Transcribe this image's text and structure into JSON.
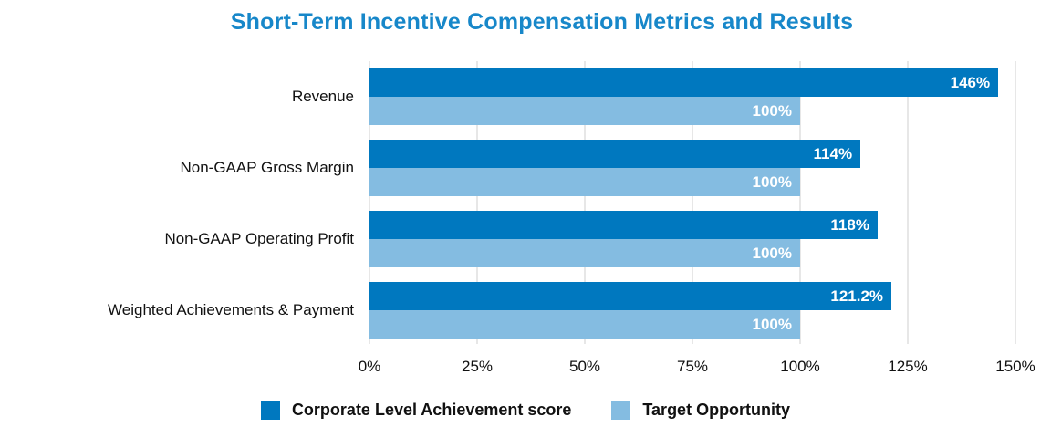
{
  "title": "Short-Term Incentive Compensation Metrics and Results",
  "colors": {
    "title_text": "#1787C9",
    "achievement_bar": "#0078BF",
    "target_bar": "#84BCE1",
    "gridline": "#E7E7E7",
    "axis_text": "#111111",
    "bar_value_text": "#FFFFFF",
    "background": "#FFFFFF"
  },
  "chart_data": {
    "type": "bar",
    "orientation": "horizontal",
    "title": "Short-Term Incentive Compensation Metrics and Results",
    "categories": [
      "Revenue",
      "Non-GAAP Gross Margin",
      "Non-GAAP Operating Profit",
      "Weighted Achievements & Payment"
    ],
    "series": [
      {
        "name": "Corporate Level Achievement score",
        "slug": "achievement-score",
        "color": "#0078BF",
        "values": [
          146,
          114,
          118,
          121.2
        ],
        "labels": [
          "146%",
          "114%",
          "118%",
          "121.2%"
        ]
      },
      {
        "name": "Target Opportunity",
        "slug": "target-opportunity",
        "color": "#84BCE1",
        "values": [
          100,
          100,
          100,
          100
        ],
        "labels": [
          "100%",
          "100%",
          "100%",
          "100%"
        ]
      }
    ],
    "xlabel": "",
    "ylabel": "",
    "xlim": [
      0,
      150
    ],
    "x_ticks": [
      "0%",
      "25%",
      "50%",
      "75%",
      "100%",
      "125%",
      "150%"
    ],
    "x_tick_values": [
      0,
      25,
      50,
      75,
      100,
      125,
      150
    ],
    "grid": "vertical",
    "value_labels_position": "inside-end",
    "legend_position": "bottom"
  }
}
